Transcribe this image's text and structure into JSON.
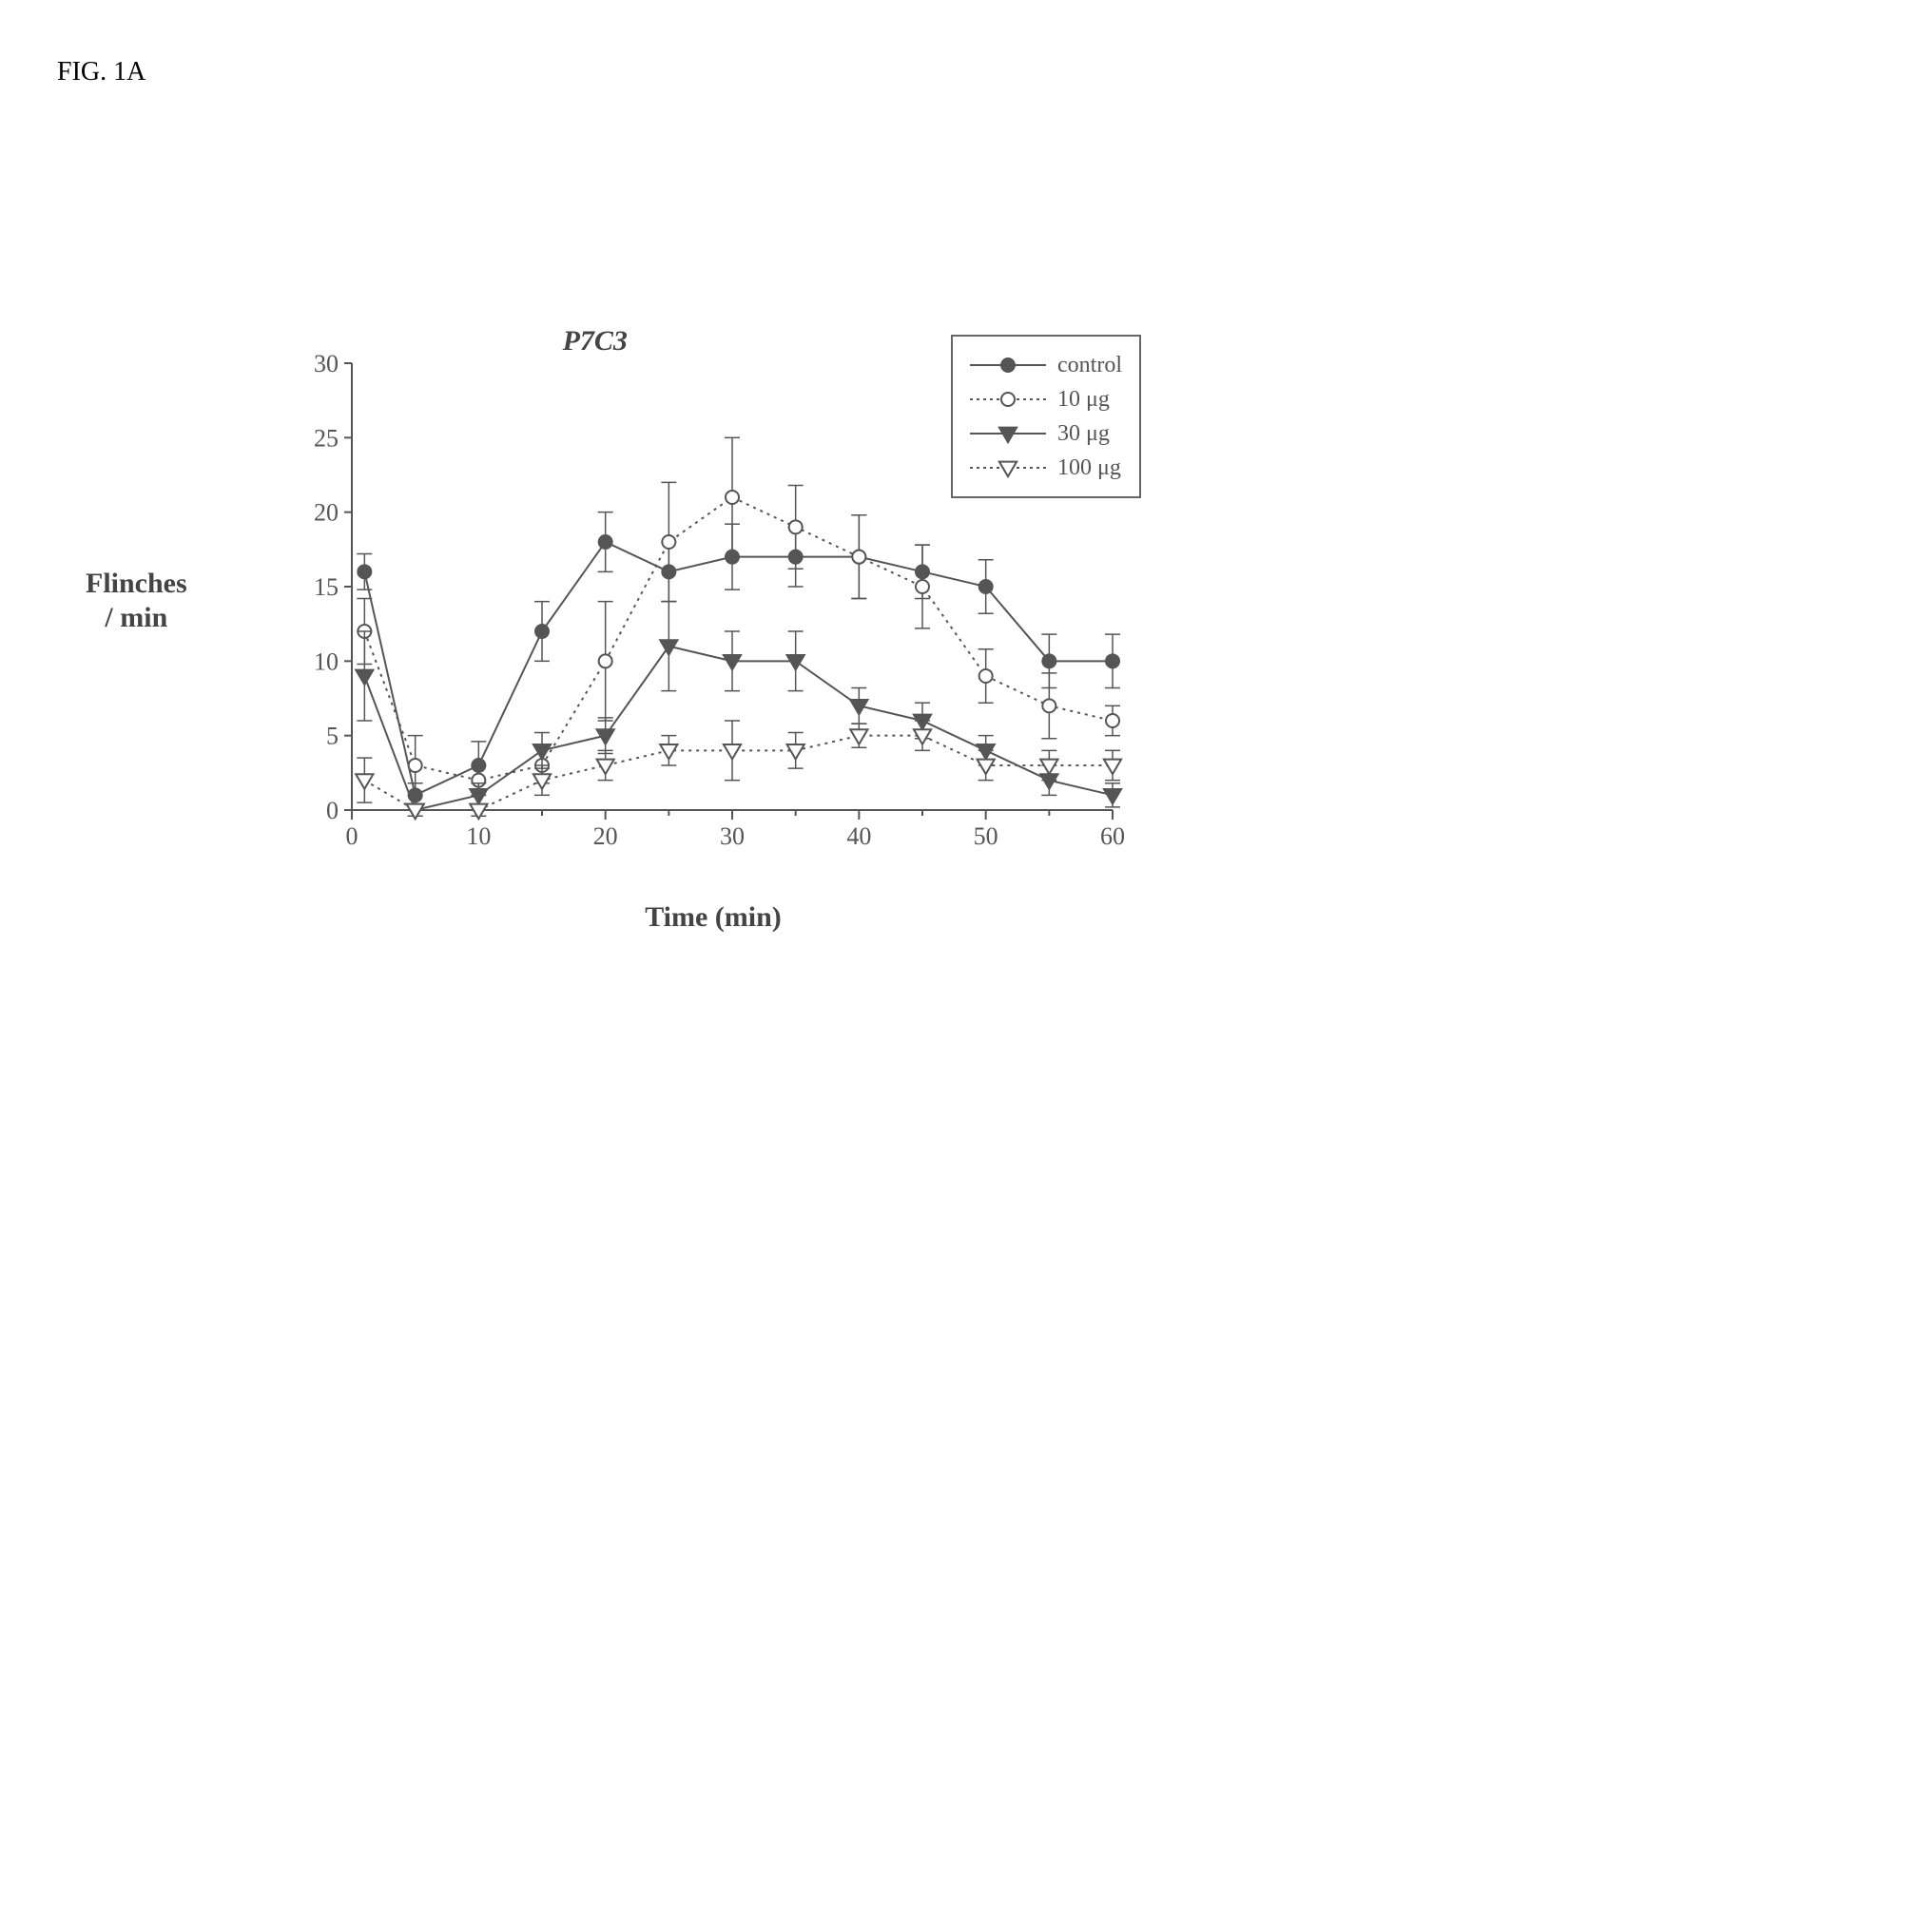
{
  "figure_label": "FIG. 1A",
  "chart": {
    "type": "line-scatter-errorbar",
    "title": "P7C3",
    "xlabel": "Time (min)",
    "ylabel_line1": "Flinches",
    "ylabel_line2": "/ min",
    "xlim": [
      0,
      60
    ],
    "ylim": [
      0,
      30
    ],
    "xticks": [
      0,
      10,
      20,
      30,
      40,
      50,
      60
    ],
    "yticks": [
      0,
      5,
      10,
      15,
      20,
      25,
      30
    ],
    "xtick_step": 10,
    "ytick_step": 5,
    "x_minor_step": 5,
    "tick_fontsize": 26,
    "label_fontsize": 30,
    "title_fontsize": 30,
    "background_color": "#ffffff",
    "axis_color": "#555555",
    "tick_color": "#555555",
    "text_color": "#555555",
    "line_width": 2,
    "marker_size": 7,
    "error_cap_width": 8,
    "legend": {
      "position": "top-right-outside",
      "border_color": "#666666",
      "bg_color": "#ffffff",
      "fontsize": 24,
      "items": [
        {
          "label": "control",
          "marker": "circle-filled",
          "line_style": "solid",
          "color": "#555555"
        },
        {
          "label": "10 μg",
          "marker": "circle-open",
          "line_style": "dotted",
          "color": "#555555"
        },
        {
          "label": "30 μg",
          "marker": "triangle-down-filled",
          "line_style": "solid",
          "color": "#555555"
        },
        {
          "label": "100 μg",
          "marker": "triangle-down-open",
          "line_style": "dotted",
          "color": "#555555"
        }
      ]
    },
    "series": [
      {
        "name": "control",
        "marker": "circle-filled",
        "line_style": "solid",
        "x": [
          1,
          5,
          10,
          15,
          20,
          25,
          30,
          35,
          40,
          45,
          50,
          55,
          60
        ],
        "y": [
          16,
          1,
          3,
          12,
          18,
          16,
          17,
          17,
          17,
          16,
          15,
          10,
          10
        ],
        "err": [
          1.2,
          0.8,
          1.6,
          2.0,
          2.0,
          2.0,
          2.2,
          2.0,
          2.8,
          1.8,
          1.8,
          1.8,
          1.8
        ]
      },
      {
        "name": "10ug",
        "marker": "circle-open",
        "line_style": "dotted",
        "x": [
          1,
          5,
          10,
          15,
          20,
          25,
          30,
          35,
          40,
          45,
          50,
          55,
          60
        ],
        "y": [
          12,
          3,
          2,
          3,
          10,
          18,
          21,
          19,
          17,
          15,
          9,
          7,
          6
        ],
        "err": [
          2.2,
          2.0,
          1.0,
          1.2,
          4.0,
          4.0,
          4.0,
          2.8,
          2.8,
          2.8,
          1.8,
          2.2,
          1.0
        ]
      },
      {
        "name": "30ug",
        "marker": "triangle-down-filled",
        "line_style": "solid",
        "x": [
          1,
          5,
          10,
          15,
          20,
          25,
          30,
          35,
          40,
          45,
          50,
          55,
          60
        ],
        "y": [
          9,
          0,
          1,
          4,
          5,
          11,
          10,
          10,
          7,
          6,
          4,
          2,
          1
        ],
        "err": [
          3.0,
          0.4,
          0.8,
          1.2,
          1.2,
          3.0,
          2.0,
          2.0,
          1.2,
          1.2,
          1.0,
          1.0,
          0.8
        ]
      },
      {
        "name": "100ug",
        "marker": "triangle-down-open",
        "line_style": "dotted",
        "x": [
          1,
          5,
          10,
          15,
          20,
          25,
          30,
          35,
          40,
          45,
          50,
          55,
          60
        ],
        "y": [
          2,
          0,
          0,
          2,
          3,
          4,
          4,
          4,
          5,
          5,
          3,
          3,
          3
        ],
        "err": [
          1.5,
          0.4,
          0.4,
          1.0,
          1.0,
          1.0,
          2.0,
          1.2,
          0.8,
          1.0,
          1.0,
          1.0,
          1.0
        ]
      }
    ]
  }
}
